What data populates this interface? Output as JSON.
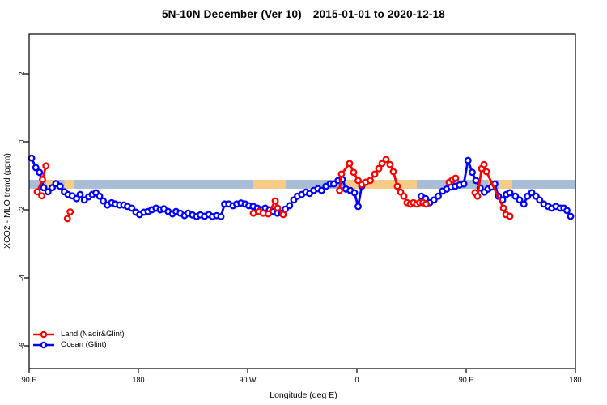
{
  "title": {
    "region_period": "5N-10N December (Ver 10)",
    "date_range": "2015-01-01 to 2020-12-18"
  },
  "axes": {
    "x": {
      "label": "Longitude (deg E)",
      "ticks": [
        {
          "pos": 90,
          "label": "90 E"
        },
        {
          "pos": 180,
          "label": "180"
        },
        {
          "pos": 270,
          "label": "90 W"
        },
        {
          "pos": 360,
          "label": "0"
        },
        {
          "pos": 450,
          "label": "90 E"
        },
        {
          "pos": 540,
          "label": "180"
        }
      ]
    },
    "y": {
      "label": "XCO2 - MLO trend (ppm)",
      "ticks": [
        {
          "value": 2,
          "label": "2"
        },
        {
          "value": 0,
          "label": "0"
        },
        {
          "value": -2,
          "label": "-2"
        },
        {
          "value": -4,
          "label": "-4"
        },
        {
          "value": -6,
          "label": "-6"
        }
      ]
    }
  },
  "legend": {
    "items": [
      {
        "label": "Land (Nadir&Glint)",
        "color": "#ff0000"
      },
      {
        "label": "Ocean (Glint)",
        "color": "#0000ff"
      }
    ]
  },
  "chart_data": {
    "type": "line",
    "title": "5N-10N December (Ver 10)  2015-01-01 to 2020-12-18",
    "xlabel": "Longitude (deg E)",
    "ylabel": "XCO2 - MLO trend (ppm)",
    "x_axis_note": "axis coordinate runs 90E eastward around the globe: 90E,180,90W,0,90E,180 (stored as 90..540 deg)",
    "xlim": [
      90,
      540
    ],
    "ylim": [
      -6.7,
      3.2
    ],
    "grid": false,
    "legend_position": "bottom-left",
    "reference_band": {
      "description": "horizontal latitude-strip map band: ocean blue with land shown tan",
      "y_from": -1.38,
      "y_to": -1.12,
      "ocean_color": "#a9bdd6",
      "land_color": "#f6cc87",
      "land_segments_x": [
        [
          104,
          111
        ],
        [
          119,
          127
        ],
        [
          274.7,
          301.3
        ],
        [
          351.3,
          409.3
        ],
        [
          468,
          474
        ],
        [
          477.3,
          488
        ]
      ]
    },
    "series": [
      {
        "name": "Land (Nadir&Glint)",
        "color": "#ff0000",
        "marker": "open-circle",
        "segments": [
          [
            [
              103.8,
              -0.71
            ],
            [
              101.0,
              -1.11
            ],
            [
              96.7,
              -1.47
            ],
            [
              100.4,
              -1.59
            ]
          ],
          [
            [
              121.5,
              -2.26
            ],
            [
              123.8,
              -2.06
            ]
          ],
          [
            [
              274.7,
              -2.1
            ],
            [
              279.3,
              -2.05
            ],
            [
              282.7,
              -2.1
            ],
            [
              287.0,
              -2.12
            ],
            [
              292.7,
              -1.74
            ],
            [
              294.7,
              -1.95
            ],
            [
              299.3,
              -2.14
            ]
          ],
          [
            [
              345.7,
              -1.43
            ],
            [
              347.3,
              -0.95
            ],
            [
              354.0,
              -0.64
            ],
            [
              357.3,
              -0.9
            ],
            [
              361.0,
              -1.14
            ],
            [
              364.0,
              -1.26
            ],
            [
              367.3,
              -1.19
            ],
            [
              371.0,
              -1.14
            ],
            [
              374.7,
              -0.95
            ],
            [
              378.0,
              -0.79
            ],
            [
              380.7,
              -0.64
            ],
            [
              384.0,
              -0.52
            ],
            [
              387.3,
              -0.67
            ],
            [
              390.0,
              -0.88
            ],
            [
              393.3,
              -1.31
            ],
            [
              396.0,
              -1.48
            ],
            [
              398.7,
              -1.6
            ],
            [
              401.3,
              -1.79
            ],
            [
              404.0,
              -1.83
            ],
            [
              406.6,
              -1.79
            ],
            [
              409.2,
              -1.83
            ],
            [
              411.8,
              -1.79
            ],
            [
              414.4,
              -1.79
            ],
            [
              417.0,
              -1.83
            ]
          ],
          [
            [
              436.0,
              -1.19
            ],
            [
              438.7,
              -1.12
            ],
            [
              441.3,
              -1.07
            ]
          ],
          [
            [
              457.3,
              -1.5
            ],
            [
              459.3,
              -1.6
            ],
            [
              462.7,
              -0.79
            ],
            [
              464.7,
              -0.67
            ],
            [
              466.7,
              -0.88
            ],
            [
              480.7,
              -1.95
            ],
            [
              482.7,
              -2.14
            ],
            [
              486.0,
              -2.19
            ]
          ]
        ]
      },
      {
        "name": "Ocean (Glint)",
        "color": "#0000ff",
        "marker": "open-circle",
        "segments": [
          [
            [
              92.0,
              -0.48
            ],
            [
              95.5,
              -0.76
            ],
            [
              98.5,
              -0.9
            ],
            [
              102.0,
              -1.35
            ],
            [
              105.5,
              -1.47
            ],
            [
              109.0,
              -1.35
            ],
            [
              112.0,
              -1.23
            ],
            [
              115.5,
              -1.31
            ],
            [
              119.0,
              -1.47
            ],
            [
              122.0,
              -1.55
            ],
            [
              125.5,
              -1.59
            ],
            [
              129.0,
              -1.67
            ],
            [
              132.0,
              -1.55
            ],
            [
              135.5,
              -1.71
            ],
            [
              139.0,
              -1.62
            ],
            [
              142.0,
              -1.55
            ],
            [
              145.0,
              -1.5
            ],
            [
              148.0,
              -1.6
            ],
            [
              151.0,
              -1.74
            ],
            [
              154.5,
              -1.86
            ],
            [
              158.0,
              -1.79
            ],
            [
              161.0,
              -1.83
            ],
            [
              164.5,
              -1.86
            ],
            [
              168.0,
              -1.86
            ],
            [
              171.0,
              -1.9
            ],
            [
              174.5,
              -1.95
            ],
            [
              178.0,
              -2.07
            ],
            [
              181.0,
              -2.14
            ],
            [
              184.5,
              -2.07
            ],
            [
              188.0,
              -2.05
            ],
            [
              191.0,
              -2.0
            ],
            [
              194.5,
              -1.95
            ],
            [
              198.0,
              -2.0
            ],
            [
              201.0,
              -1.97
            ],
            [
              204.5,
              -2.05
            ],
            [
              208.0,
              -2.12
            ],
            [
              211.0,
              -2.05
            ],
            [
              214.5,
              -2.1
            ],
            [
              218.0,
              -2.17
            ],
            [
              221.0,
              -2.1
            ],
            [
              224.5,
              -2.15
            ],
            [
              228.0,
              -2.2
            ],
            [
              231.0,
              -2.15
            ],
            [
              234.5,
              -2.19
            ],
            [
              238.0,
              -2.14
            ],
            [
              241.0,
              -2.2
            ],
            [
              244.5,
              -2.17
            ],
            [
              248.0,
              -2.2
            ],
            [
              251.0,
              -1.83
            ],
            [
              254.5,
              -1.83
            ],
            [
              258.0,
              -1.88
            ],
            [
              261.0,
              -1.83
            ],
            [
              264.5,
              -1.8
            ],
            [
              268.0,
              -1.83
            ],
            [
              271.0,
              -1.88
            ],
            [
              274.5,
              -1.9
            ],
            [
              278.0,
              -1.95
            ],
            [
              281.0,
              -2.0
            ],
            [
              284.5,
              -1.95
            ],
            [
              288.0,
              -2.0
            ],
            [
              291.0,
              -2.05
            ],
            [
              294.5,
              -2.1
            ],
            [
              298.0,
              -2.1
            ],
            [
              301.0,
              -1.98
            ],
            [
              304.5,
              -1.88
            ],
            [
              308.0,
              -1.71
            ],
            [
              311.0,
              -1.6
            ],
            [
              314.5,
              -1.55
            ],
            [
              318.0,
              -1.48
            ],
            [
              321.0,
              -1.52
            ],
            [
              324.5,
              -1.43
            ],
            [
              328.0,
              -1.38
            ],
            [
              331.0,
              -1.43
            ],
            [
              334.5,
              -1.31
            ],
            [
              338.0,
              -1.24
            ],
            [
              341.0,
              -1.24
            ],
            [
              344.5,
              -1.14
            ],
            [
              348.0,
              -1.11
            ],
            [
              351.0,
              -1.39
            ],
            [
              354.5,
              -1.43
            ],
            [
              358.0,
              -1.5
            ],
            [
              361.0,
              -1.9
            ],
            [
              364.0,
              -1.31
            ]
          ],
          [
            [
              413.0,
              -1.6
            ],
            [
              416.5,
              -1.67
            ],
            [
              420.0,
              -1.79
            ],
            [
              423.5,
              -1.71
            ],
            [
              427.0,
              -1.6
            ],
            [
              430.5,
              -1.45
            ],
            [
              434.0,
              -1.39
            ],
            [
              437.5,
              -1.33
            ],
            [
              441.0,
              -1.31
            ],
            [
              444.5,
              -1.27
            ],
            [
              448.0,
              -1.24
            ],
            [
              451.5,
              -0.55
            ],
            [
              455.0,
              -0.9
            ],
            [
              458.0,
              -1.14
            ],
            [
              461.5,
              -1.36
            ],
            [
              465.0,
              -1.48
            ],
            [
              468.0,
              -1.39
            ],
            [
              471.0,
              -1.33
            ],
            [
              473.5,
              -1.24
            ],
            [
              476.5,
              -1.6
            ],
            [
              480.0,
              -1.71
            ],
            [
              483.0,
              -1.55
            ],
            [
              486.0,
              -1.5
            ],
            [
              490.5,
              -1.6
            ],
            [
              494.0,
              -1.71
            ],
            [
              497.5,
              -1.83
            ],
            [
              500.5,
              -1.6
            ],
            [
              504.0,
              -1.5
            ],
            [
              507.5,
              -1.6
            ],
            [
              510.5,
              -1.71
            ],
            [
              514.0,
              -1.83
            ],
            [
              517.5,
              -1.9
            ],
            [
              520.5,
              -1.95
            ],
            [
              524.0,
              -1.9
            ],
            [
              527.5,
              -1.95
            ],
            [
              530.5,
              -1.95
            ],
            [
              533.0,
              -2.02
            ],
            [
              536.0,
              -2.19
            ]
          ]
        ]
      }
    ]
  }
}
